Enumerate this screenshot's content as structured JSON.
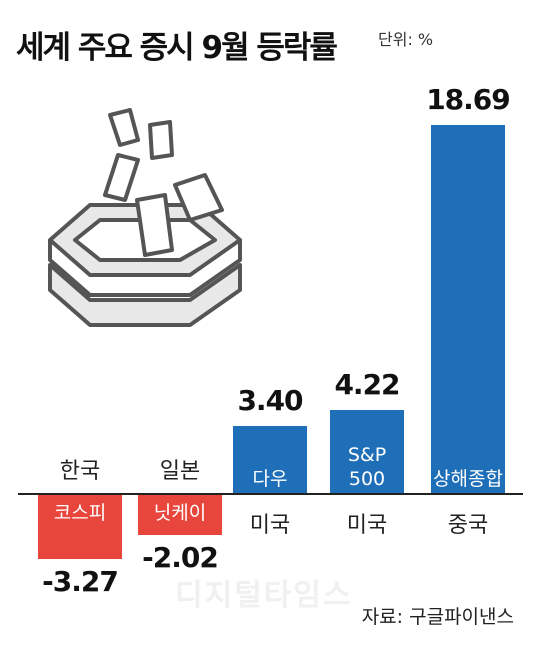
{
  "chart_data": {
    "type": "bar",
    "title": "세계 주요 증시 9월 등락률",
    "unit": "단위: %",
    "source": "자료: 구글파이낸스",
    "watermark": "디지털타임스",
    "categories": [
      "코스피",
      "닛케이",
      "다우",
      "S&P 500",
      "상해종합"
    ],
    "countries": [
      "한국",
      "일본",
      "미국",
      "미국",
      "중국"
    ],
    "values": [
      -3.27,
      -2.02,
      3.4,
      4.22,
      18.69
    ],
    "value_labels": [
      "-3.27",
      "-2.02",
      "3.40",
      "4.22",
      "18.69"
    ],
    "positive_color": "#1f6fb8",
    "negative_color": "#e8463c"
  }
}
